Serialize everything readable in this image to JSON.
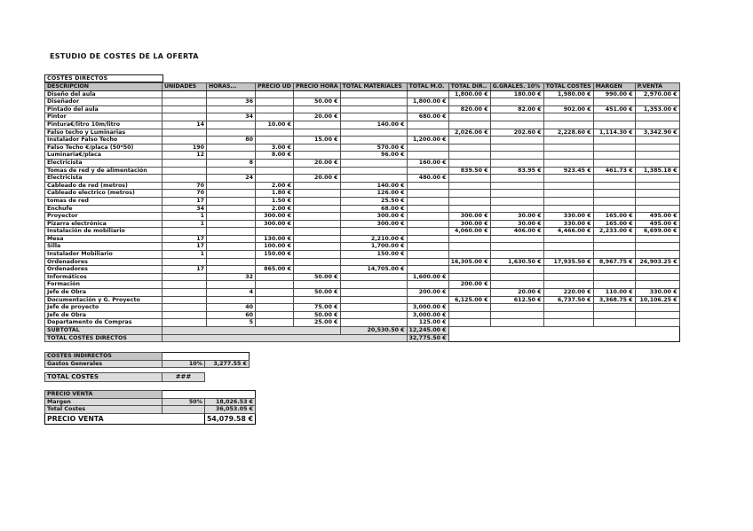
{
  "title": "ESTUDIO DE COSTES DE LA OFERTA",
  "colors": {
    "header_fill": "#c4c4c4",
    "row_fill": "#dcdcdc",
    "border": "#4f4f4f"
  },
  "direct_costs": {
    "section_label": "COSTES DIRECTOS",
    "columns": [
      "DESCRIPCION",
      "UNIDADES",
      "HORAS...",
      "PRECIO UD",
      "PRECIO HORA",
      "TOTAL MATERIALES",
      "TOTAL M.O.",
      "TOTAL DIR..",
      "G.GRALES. 10%",
      "TOTAL COSTES",
      "MARGEN",
      "P.VENTA"
    ],
    "column_keys": [
      "descripcion",
      "unidades",
      "horas",
      "precio-ud",
      "precio-hora",
      "total-materiales",
      "total-mo",
      "total-dir",
      "g-grales-10",
      "total-costes",
      "margen",
      "p-venta"
    ],
    "rows": [
      [
        "Diseño del aula",
        "",
        "",
        "",
        "",
        "",
        "",
        "1,800.00 €",
        "180.00 €",
        "1,980.00 €",
        "990.00 €",
        "2,970.00 €"
      ],
      [
        "Diseñador",
        "",
        "36",
        "",
        "50.00 €",
        "",
        "1,800.00 €",
        "",
        "",
        "",
        "",
        ""
      ],
      [
        "Pintado del aula",
        "",
        "",
        "",
        "",
        "",
        "",
        "820.00 €",
        "82.00 €",
        "902.00 €",
        "451.00 €",
        "1,353.00 €"
      ],
      [
        "Pintor",
        "",
        "34",
        "",
        "20.00 €",
        "",
        "680.00 €",
        "",
        "",
        "",
        "",
        ""
      ],
      [
        "Pintura€/litro 10m/litro",
        "14",
        "",
        "10.00 €",
        "",
        "140.00 €",
        "",
        "",
        "",
        "",
        "",
        ""
      ],
      [
        "Falso techo y Luminarias",
        "",
        "",
        "",
        "",
        "",
        "",
        "2,026.00 €",
        "202.60 €",
        "2,228.60 €",
        "1,114.30 €",
        "3,342.90 €"
      ],
      [
        "Instalador Falso Techo",
        "",
        "80",
        "",
        "15.00 €",
        "",
        "1,200.00 €",
        "",
        "",
        "",
        "",
        ""
      ],
      [
        "Falso Techo €/placa (50*50)",
        "190",
        "",
        "3.00 €",
        "",
        "570.00 €",
        "",
        "",
        "",
        "",
        "",
        ""
      ],
      [
        "Luminaria€/placa",
        "12",
        "",
        "8.00 €",
        "",
        "96.00 €",
        "",
        "",
        "",
        "",
        "",
        ""
      ],
      [
        "Electricista",
        "",
        "8",
        "",
        "20.00 €",
        "",
        "160.00 €",
        "",
        "",
        "",
        "",
        ""
      ],
      [
        "Tomas de red y de alimentación",
        "",
        "",
        "",
        "",
        "",
        "",
        "839.50 €",
        "83.95 €",
        "923.45 €",
        "461.73 €",
        "1,385.18 €"
      ],
      [
        "Electricista",
        "",
        "24",
        "",
        "20.00 €",
        "",
        "480.00 €",
        "",
        "",
        "",
        "",
        ""
      ],
      [
        "Cableado de red (metros)",
        "70",
        "",
        "2.00 €",
        "",
        "140.00 €",
        "",
        "",
        "",
        "",
        "",
        ""
      ],
      [
        "Cableado electrico (metros)",
        "70",
        "",
        "1.80 €",
        "",
        "126.00 €",
        "",
        "",
        "",
        "",
        "",
        ""
      ],
      [
        "tomas de red",
        "17",
        "",
        "1.50 €",
        "",
        "25.50 €",
        "",
        "",
        "",
        "",
        "",
        ""
      ],
      [
        "Enchufe",
        "34",
        "",
        "2.00 €",
        "",
        "68.00 €",
        "",
        "",
        "",
        "",
        "",
        ""
      ],
      [
        "Proyector",
        "1",
        "",
        "300.00 €",
        "",
        "300.00 €",
        "",
        "300.00 €",
        "30.00 €",
        "330.00 €",
        "165.00 €",
        "495.00 €"
      ],
      [
        "Pizarra electrónica",
        "1",
        "",
        "300.00 €",
        "",
        "300.00 €",
        "",
        "300.00 €",
        "30.00 €",
        "330.00 €",
        "165.00 €",
        "495.00 €"
      ],
      [
        "Instalación de mobiliario",
        "",
        "",
        "",
        "",
        "",
        "",
        "4,060.00 €",
        "406.00 €",
        "4,466.00 €",
        "2,233.00 €",
        "6,699.00 €"
      ],
      [
        "Mesa",
        "17",
        "",
        "130.00 €",
        "",
        "2,210.00 €",
        "",
        "",
        "",
        "",
        "",
        ""
      ],
      [
        "Silla",
        "17",
        "",
        "100.00 €",
        "",
        "1,700.00 €",
        "",
        "",
        "",
        "",
        "",
        ""
      ],
      [
        "Instalador Mobiliario",
        "1",
        "",
        "150.00 €",
        "",
        "150.00 €",
        "",
        "",
        "",
        "",
        "",
        ""
      ],
      [
        "Ordenadores",
        "",
        "",
        "",
        "",
        "",
        "",
        "16,305.00 €",
        "1,630.50 €",
        "17,935.50 €",
        "8,967.75 €",
        "26,903.25 €"
      ],
      [
        "Ordenadores",
        "17",
        "",
        "865.00 €",
        "",
        "14,705.00 €",
        "",
        "",
        "",
        "",
        "",
        ""
      ],
      [
        "Informáticos",
        "",
        "32",
        "",
        "50.00 €",
        "",
        "1,600.00 €",
        "",
        "",
        "",
        "",
        ""
      ],
      [
        "Formación",
        "",
        "",
        "",
        "",
        "",
        "",
        "200.00 €",
        "",
        "",
        "",
        ""
      ],
      [
        "Jefe de Obra",
        "",
        "4",
        "",
        "50.00 €",
        "",
        "200.00 €",
        "",
        "20.00 €",
        "220.00 €",
        "110.00 €",
        "330.00 €"
      ],
      [
        "Documentación y G. Proyecto",
        "",
        "",
        "",
        "",
        "",
        "",
        "6,125.00 €",
        "612.50 €",
        "6,737.50 €",
        "3,368.75 €",
        "10,106.25 €"
      ],
      [
        "Jefe de proyecto",
        "",
        "40",
        "",
        "75.00 €",
        "",
        "3,000.00 €",
        "",
        "",
        "",
        "",
        ""
      ],
      [
        "Jefe de Obra",
        "",
        "60",
        "",
        "50.00 €",
        "",
        "3,000.00 €",
        "",
        "",
        "",
        "",
        ""
      ],
      [
        "Departamento de Compras",
        "",
        "5",
        "",
        "25.00 €",
        "",
        "125.00 €",
        "",
        "",
        "",
        "",
        ""
      ]
    ],
    "subtotal": {
      "label": "SUBTOTAL",
      "total_materiales": "20,530.50 €",
      "total_mo": "12,245.00 €"
    },
    "total": {
      "label": "TOTAL COSTES DIRECTOS",
      "value": "32,775.50 €"
    }
  },
  "indirect_costs": {
    "section_label": "COSTES INDIRECTOS",
    "rows": [
      [
        "Gastos Generales",
        "10%",
        "3,277.55 €"
      ]
    ]
  },
  "total_costes": {
    "label": "TOTAL COSTES",
    "value": "###"
  },
  "precio_venta": {
    "section_label": "PRECIO VENTA",
    "rows": [
      [
        "Margen",
        "50%",
        "18,026.53 €"
      ],
      [
        "Total Costes",
        "",
        "36,053.05 €"
      ]
    ],
    "final": {
      "label": "PRECIO VENTA",
      "value": "54,079.58 €"
    }
  }
}
